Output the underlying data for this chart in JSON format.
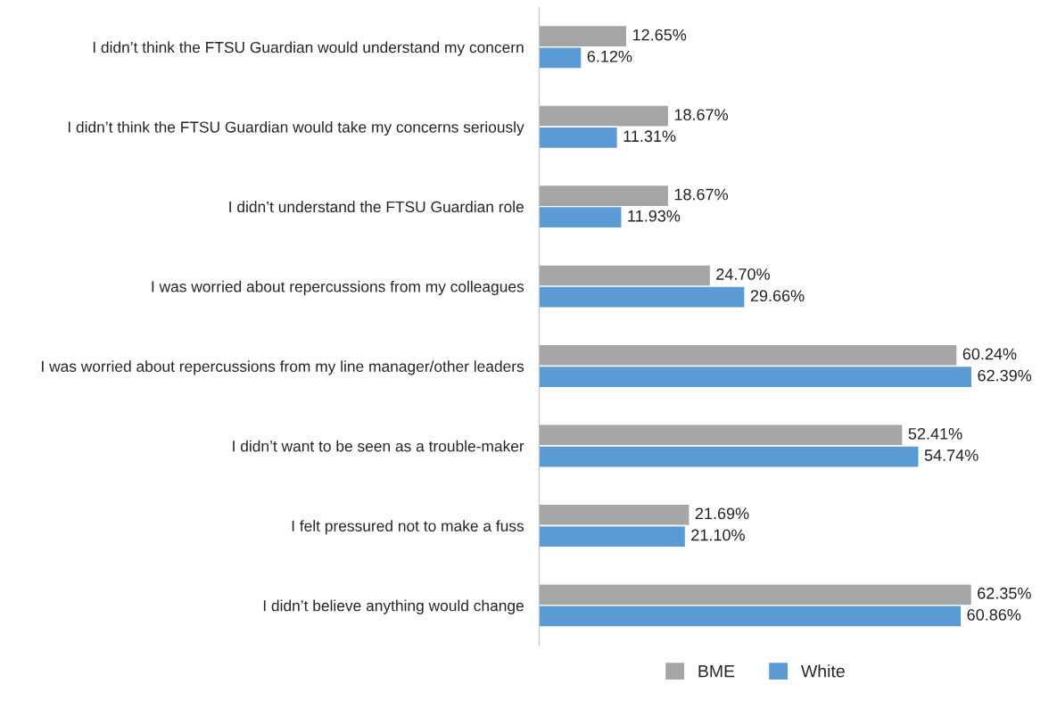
{
  "chart_data": {
    "type": "bar",
    "orientation": "horizontal",
    "categories": [
      "I didn’t think the FTSU Guardian would understand my concern",
      "I didn’t think the FTSU Guardian would take my concerns seriously",
      "I didn’t understand the FTSU Guardian role",
      "I was worried about repercussions from my colleagues",
      "I was worried about repercussions from my line manager/other leaders",
      "I didn’t want to be seen as a trouble-maker",
      "I felt pressured not to make a fuss",
      "I didn’t believe anything would change"
    ],
    "series": [
      {
        "name": "BME",
        "color": "#a5a5a5",
        "values": [
          12.65,
          18.67,
          18.67,
          24.7,
          60.24,
          52.41,
          21.69,
          62.35
        ],
        "value_labels": [
          "12.65%",
          "18.67%",
          "18.67%",
          "24.70%",
          "60.24%",
          "52.41%",
          "21.69%",
          "62.35%"
        ]
      },
      {
        "name": "White",
        "color": "#5b9bd5",
        "values": [
          6.12,
          11.31,
          11.93,
          29.66,
          62.39,
          54.74,
          21.1,
          60.86
        ],
        "value_labels": [
          "6.12%",
          "11.31%",
          "11.93%",
          "29.66%",
          "62.39%",
          "54.74%",
          "21.10%",
          "60.86%"
        ]
      }
    ],
    "legend": "bottom",
    "grid": false
  }
}
